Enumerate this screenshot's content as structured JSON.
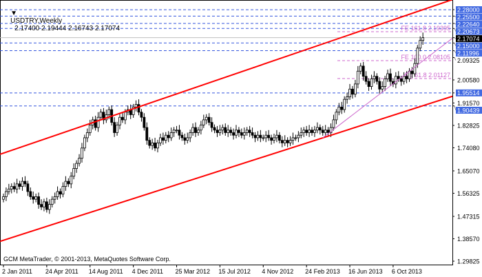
{
  "header": {
    "symbol_timeframe": "USDTRY,Weekly",
    "ohlc": "2.17400 2.19444 2.16743 2.17074",
    "menu_icon": "triangle-down-icon"
  },
  "footer": {
    "copyright": "GCM MetaTrader, © 2001-2013, MetaQuotes Software Corp."
  },
  "colors": {
    "bull": "#ffffff",
    "bear": "#000000",
    "channel": "#ff0000",
    "fibo": "#cc66cc",
    "level": "#3355dd",
    "label_bg": "#4169e1"
  },
  "chart_data": {
    "type": "candlestick",
    "title": "USDTRY,Weekly",
    "ylim": [
      1.26,
      2.31
    ],
    "y_ticks": [
      "2.28000",
      "2.25500",
      "2.22640",
      "2.20673",
      "2.17074",
      "2.15000",
      "2.11996",
      "2.09325",
      "2.00580",
      "1.95514",
      "1.91570",
      "1.90439",
      "1.82825",
      "1.74080",
      "1.65070",
      "1.56325",
      "1.47315",
      "1.38570",
      "1.29825"
    ],
    "highlighted_levels": [
      "2.28000",
      "2.25500",
      "2.22640",
      "2.20673",
      "2.15000",
      "2.11996",
      "1.95514",
      "1.90439"
    ],
    "current_price": "2.17074",
    "x_ticks": [
      "2 Jan 2011",
      "24 Apr 2011",
      "14 Aug 2011",
      "4 Dec 2011",
      "25 Mar 2012",
      "15 Jul 2012",
      "4 Nov 2012",
      "24 Feb 2013",
      "16 Jun 2013",
      "6 Oct 2013"
    ],
    "weekly_close": [
      1.55,
      1.57,
      1.58,
      1.59,
      1.58,
      1.6,
      1.59,
      1.61,
      1.6,
      1.57,
      1.55,
      1.54,
      1.55,
      1.52,
      1.51,
      1.53,
      1.5,
      1.52,
      1.54,
      1.55,
      1.57,
      1.56,
      1.59,
      1.61,
      1.6,
      1.63,
      1.66,
      1.68,
      1.7,
      1.74,
      1.78,
      1.8,
      1.83,
      1.85,
      1.82,
      1.86,
      1.88,
      1.85,
      1.87,
      1.89,
      1.84,
      1.8,
      1.83,
      1.86,
      1.85,
      1.88,
      1.89,
      1.87,
      1.9,
      1.91,
      1.88,
      1.86,
      1.82,
      1.77,
      1.75,
      1.76,
      1.74,
      1.76,
      1.78,
      1.77,
      1.79,
      1.78,
      1.8,
      1.81,
      1.81,
      1.79,
      1.78,
      1.77,
      1.78,
      1.8,
      1.82,
      1.8,
      1.81,
      1.83,
      1.85,
      1.86,
      1.84,
      1.82,
      1.81,
      1.8,
      1.81,
      1.82,
      1.8,
      1.81,
      1.8,
      1.79,
      1.81,
      1.8,
      1.79,
      1.8,
      1.81,
      1.8,
      1.79,
      1.78,
      1.79,
      1.78,
      1.78,
      1.79,
      1.78,
      1.77,
      1.78,
      1.79,
      1.77,
      1.76,
      1.77,
      1.76,
      1.77,
      1.78,
      1.78,
      1.79,
      1.8,
      1.81,
      1.8,
      1.81,
      1.8,
      1.81,
      1.82,
      1.81,
      1.8,
      1.81,
      1.8,
      1.82,
      1.85,
      1.88,
      1.9,
      1.89,
      1.93,
      1.94,
      1.97,
      1.95,
      1.99,
      2.04,
      2.06,
      2.02,
      2.0,
      1.98,
      2.01,
      2.02,
      2.0,
      1.97,
      1.98,
      2.01,
      2.03,
      2.0,
      1.99,
      2.02,
      2.01,
      2.0,
      2.02,
      2.01,
      2.04,
      2.03,
      2.07,
      2.13,
      2.16,
      2.17074
    ],
    "fibo_levels": [
      {
        "label": "FE 161.8 2.19395",
        "value": 2.19395
      },
      {
        "label": "FE 100.0 2.08105",
        "value": 2.08105
      },
      {
        "label": "FE 61.8 2.01127",
        "value": 2.01127
      }
    ],
    "channel_upper": [
      [
        0,
        1.72
      ],
      [
        155,
        2.28
      ]
    ],
    "channel_lower": [
      [
        0,
        1.38
      ],
      [
        155,
        1.905
      ]
    ],
    "trendline": [
      [
        118,
        1.78
      ],
      [
        155,
        2.08
      ]
    ]
  }
}
